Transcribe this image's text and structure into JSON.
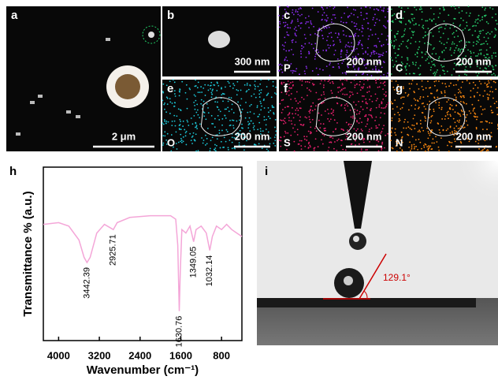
{
  "panels": [
    {
      "label": "a",
      "scale_bar": "2 μm"
    },
    {
      "label": "b",
      "scale_bar": "300 nm"
    },
    {
      "label": "c",
      "element": "P",
      "scale_bar": "200 nm",
      "color": "#8b2cf0"
    },
    {
      "label": "d",
      "element": "C",
      "scale_bar": "200 nm",
      "color": "#27c96a"
    },
    {
      "label": "e",
      "element": "O",
      "scale_bar": "200 nm",
      "color": "#1cc8d8"
    },
    {
      "label": "f",
      "element": "S",
      "scale_bar": "200 nm",
      "color": "#e8206e"
    },
    {
      "label": "g",
      "element": "N",
      "scale_bar": "200 nm",
      "color": "#ff8a10"
    },
    {
      "label": "h"
    },
    {
      "label": "i"
    }
  ],
  "contact_angle_label": "129.1°",
  "chart_data": {
    "type": "line",
    "x_label": "Wavenumber (cm⁻¹)",
    "y_label": "Transmittance % (a.u.)",
    "x": [
      4300,
      4000,
      3800,
      3600,
      3500,
      3442,
      3380,
      3250,
      3100,
      2925,
      2850,
      2600,
      2200,
      1800,
      1700,
      1660,
      1630,
      1610,
      1580,
      1500,
      1420,
      1349,
      1300,
      1200,
      1100,
      1032,
      980,
      900,
      800,
      700,
      600,
      500,
      400
    ],
    "values": [
      67,
      68,
      66,
      58,
      48,
      45,
      48,
      62,
      67,
      64,
      68,
      71,
      72,
      72,
      70,
      55,
      17,
      40,
      64,
      62,
      66,
      57,
      64,
      66,
      62,
      52,
      60,
      66,
      64,
      67,
      64,
      62,
      60
    ],
    "color": "#f4a6d8",
    "xlim": [
      4300,
      400
    ],
    "ylim": [
      0,
      100
    ],
    "xticks": [
      4000,
      3200,
      2400,
      1600,
      800
    ],
    "peaks": [
      3442.39,
      2925.71,
      1630.76,
      1349.05,
      1032.14
    ]
  }
}
